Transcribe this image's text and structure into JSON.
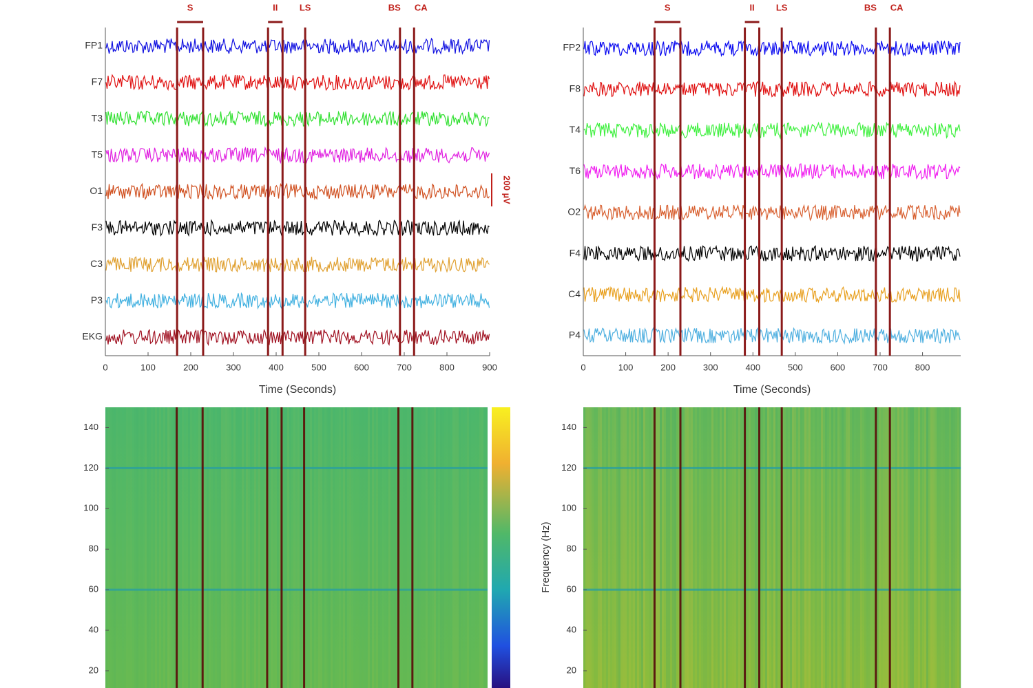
{
  "chart_data": [
    {
      "type": "eeg",
      "categories": [
        "FP1",
        "F7",
        "T3",
        "T5",
        "O1",
        "F3",
        "C3",
        "P3",
        "EKG"
      ],
      "colors": [
        "#1010e0",
        "#e01010",
        "#30e030",
        "#e020e0",
        "#d05020",
        "#000000",
        "#e0a030",
        "#40b0e0",
        "#a01020"
      ],
      "xlim": [
        0,
        900
      ],
      "xticks": [
        0,
        100,
        200,
        300,
        400,
        500,
        600,
        700,
        800,
        900
      ],
      "xlabel": "Time (Seconds)",
      "events": [
        {
          "label": "S",
          "x": [
            168,
            229
          ]
        },
        {
          "label": "II",
          "x": [
            381,
            415
          ]
        },
        {
          "label": "LS",
          "x": [
            468
          ]
        },
        {
          "label": "BS",
          "x": [
            690
          ]
        },
        {
          "label": "CA",
          "x": [
            723
          ]
        }
      ],
      "scale_bar": "200 µV"
    },
    {
      "type": "eeg",
      "categories": [
        "FP2",
        "F8",
        "T4",
        "T6",
        "O2",
        "F4",
        "C4",
        "P4"
      ],
      "colors": [
        "#0808f0",
        "#e01010",
        "#40f040",
        "#f020f0",
        "#d86030",
        "#000000",
        "#e8a020",
        "#50b0e0"
      ],
      "xlim": [
        0,
        890
      ],
      "xticks": [
        0,
        100,
        200,
        300,
        400,
        500,
        600,
        700,
        800
      ],
      "xlabel": "Time (Seconds)"
    },
    {
      "type": "spectrogram",
      "ylim": [
        11.5,
        150
      ],
      "yticks": [
        20,
        40,
        60,
        80,
        100,
        120,
        140
      ],
      "noise_lines": [
        60,
        120
      ],
      "colorbar": true
    },
    {
      "type": "spectrogram",
      "ylabel": "Frequency (Hz)",
      "ylim": [
        11.5,
        150
      ],
      "yticks": [
        20,
        40,
        60,
        80,
        100,
        120,
        140
      ],
      "noise_lines": [
        60,
        120
      ]
    }
  ]
}
